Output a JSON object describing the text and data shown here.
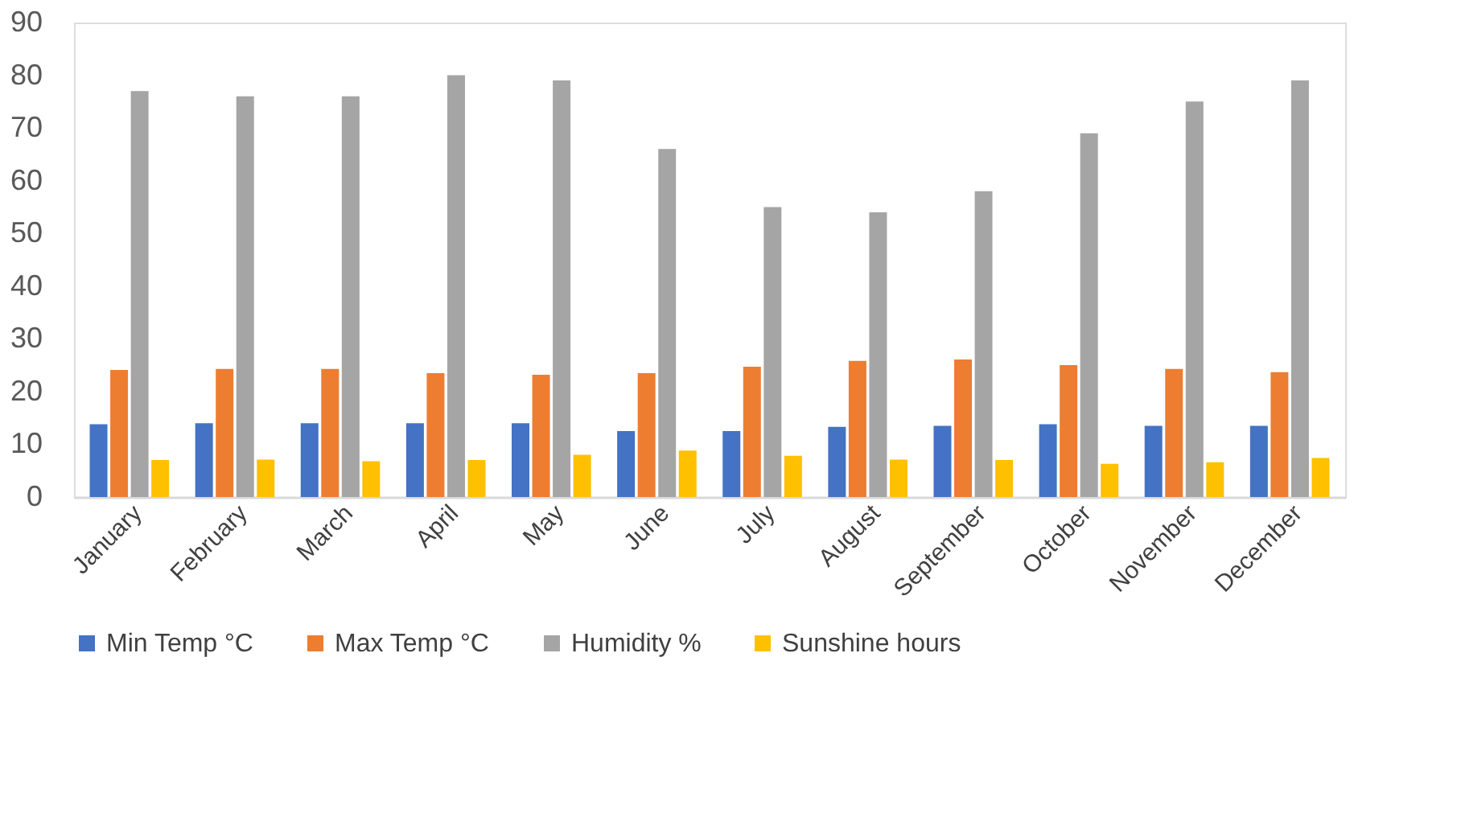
{
  "chart_data": {
    "type": "bar",
    "categories": [
      "January",
      "February",
      "March",
      "April",
      "May",
      "June",
      "July",
      "August",
      "September",
      "October",
      "November",
      "December"
    ],
    "series": [
      {
        "name": "Min Temp °C",
        "color": "#4472c4",
        "values": [
          13.8,
          14,
          14,
          14,
          14,
          12.5,
          12.5,
          13.3,
          13.5,
          13.8,
          13.5,
          13.5
        ]
      },
      {
        "name": "Max Temp °C",
        "color": "#ed7d31",
        "values": [
          24.1,
          24.3,
          24.3,
          23.5,
          23.2,
          23.5,
          24.7,
          25.8,
          26.1,
          25,
          24.3,
          23.7
        ]
      },
      {
        "name": "Humidity %",
        "color": "#a5a5a5",
        "values": [
          77,
          76,
          76,
          80,
          79,
          66,
          55,
          54,
          58,
          69,
          75,
          79
        ]
      },
      {
        "name": "Sunshine hours",
        "color": "#ffc000",
        "values": [
          7,
          7.1,
          6.8,
          7,
          8,
          8.8,
          7.8,
          7.1,
          7,
          6.3,
          6.6,
          7.4
        ]
      }
    ],
    "ylim": [
      0,
      90
    ],
    "yticks": [
      0,
      10,
      20,
      30,
      40,
      50,
      60,
      70,
      80,
      90
    ],
    "grid": false,
    "legend": "bottom"
  }
}
